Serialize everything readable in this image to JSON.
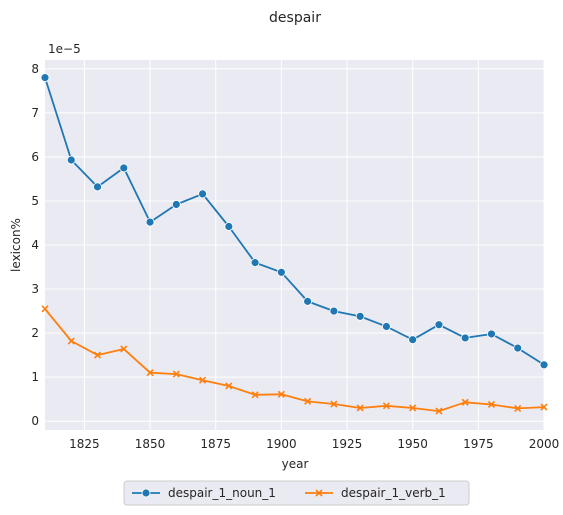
{
  "chart_data": {
    "type": "line",
    "title": "despair",
    "xlabel": "year",
    "ylabel": "lexicon%",
    "y_offset_label": "1e−5",
    "xlim": [
      1810,
      2000
    ],
    "ylim": [
      -0.2,
      8.2
    ],
    "x_ticks": [
      1825,
      1850,
      1875,
      1900,
      1925,
      1950,
      1975,
      2000
    ],
    "y_ticks": [
      0,
      1,
      2,
      3,
      4,
      5,
      6,
      7,
      8
    ],
    "x": [
      1810,
      1820,
      1830,
      1840,
      1850,
      1860,
      1870,
      1880,
      1890,
      1900,
      1910,
      1920,
      1930,
      1940,
      1950,
      1960,
      1970,
      1980,
      1990,
      2000
    ],
    "series": [
      {
        "name": "despair_1_noun_1",
        "color": "#1f77b4",
        "marker": "circle",
        "values": [
          7.8,
          5.93,
          5.32,
          5.75,
          4.52,
          4.92,
          5.16,
          4.42,
          3.6,
          3.38,
          2.72,
          2.5,
          2.38,
          2.15,
          1.85,
          2.19,
          1.89,
          1.98,
          1.66,
          1.28
        ]
      },
      {
        "name": "despair_1_verb_1",
        "color": "#ff7f0e",
        "marker": "x",
        "values": [
          2.55,
          1.82,
          1.5,
          1.64,
          1.1,
          1.07,
          0.93,
          0.8,
          0.6,
          0.61,
          0.45,
          0.39,
          0.3,
          0.35,
          0.3,
          0.23,
          0.43,
          0.38,
          0.29,
          0.32
        ]
      }
    ],
    "grid": true,
    "legend_position": "bottom-center"
  }
}
